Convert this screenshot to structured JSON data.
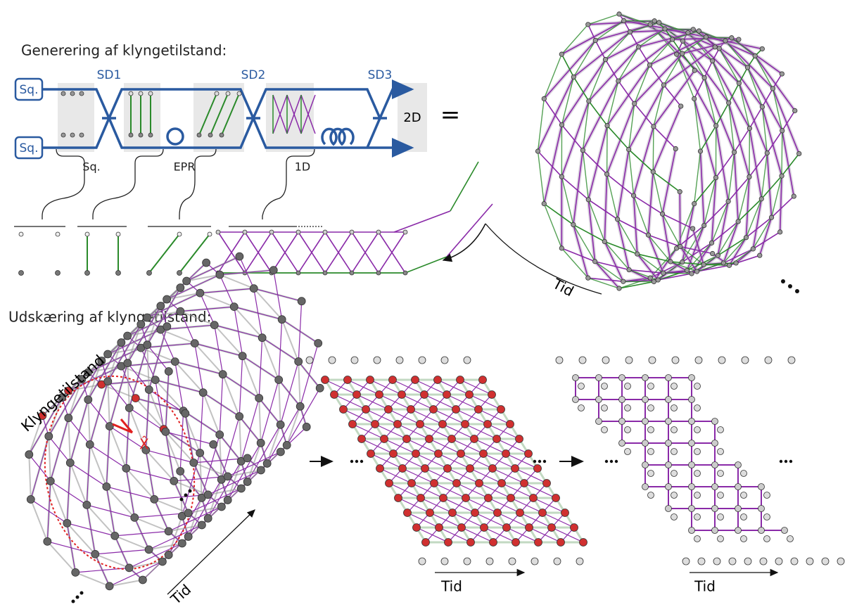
{
  "top": {
    "title": "Generering af klyngetilstand:",
    "sources": [
      "Sq.",
      "Sq."
    ],
    "splitters": [
      "SD1",
      "SD2",
      "SD3"
    ],
    "output": "2D",
    "equals": "=",
    "stages": [
      "Sq.",
      "EPR",
      "1D"
    ],
    "time": "Tid"
  },
  "bottom": {
    "title": "Udskæring af klyngetilstand:",
    "cluster_label": "Klyngetilstand",
    "measurement": "X̂",
    "time_labels": [
      "Tid",
      "Tid",
      "Tid"
    ]
  }
}
